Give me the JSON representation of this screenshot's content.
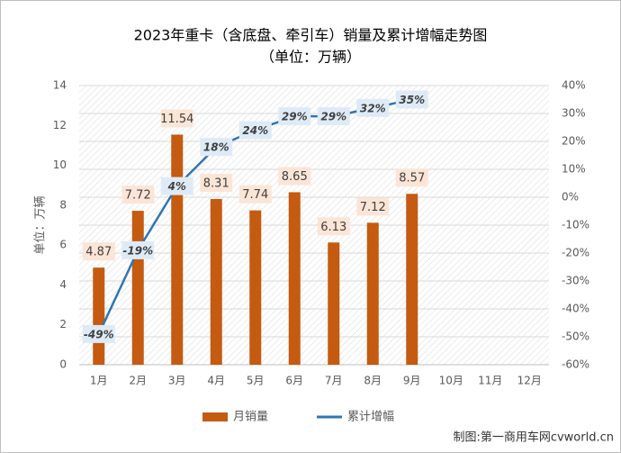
{
  "chart_data": {
    "type": "bar_line",
    "title": "2023年重卡（含底盘、牵引车）销量及累计增幅走势图",
    "subtitle": "（单位：万辆）",
    "y_label": "单位：万辆",
    "source": "制图:第一商用车网cvworld.cn",
    "categories": [
      "1月",
      "2月",
      "3月",
      "4月",
      "5月",
      "6月",
      "7月",
      "8月",
      "9月",
      "10月",
      "11月",
      "12月"
    ],
    "series": [
      {
        "name": "月销量",
        "color": "#c55a11",
        "axis": "y",
        "values": [
          4.87,
          7.72,
          11.54,
          8.31,
          7.74,
          8.65,
          6.13,
          7.12,
          8.57,
          null,
          null,
          null
        ]
      },
      {
        "name": "累计增幅",
        "color": "#2e75b6",
        "axis": "y2",
        "values": [
          -49,
          -19,
          4,
          18,
          24,
          29,
          29,
          32,
          35,
          null,
          null,
          null
        ],
        "value_labels": [
          "-49%",
          "-19%",
          "4%",
          "18%",
          "24%",
          "29%",
          "29%",
          "32%",
          "35%",
          null,
          null,
          null
        ]
      }
    ],
    "ylim": [
      0,
      14
    ],
    "yticks": [
      0,
      2,
      4,
      6,
      8,
      10,
      12,
      14
    ],
    "y2lim": [
      -60,
      40
    ],
    "y2ticks": [
      {
        "value": -60,
        "label": "-60%"
      },
      {
        "value": -50,
        "label": "-50%"
      },
      {
        "value": -40,
        "label": "-40%"
      },
      {
        "value": -30,
        "label": "-30%"
      },
      {
        "value": -20,
        "label": "-20%"
      },
      {
        "value": -10,
        "label": "-10%"
      },
      {
        "value": 0,
        "label": "0%"
      },
      {
        "value": 10,
        "label": "10%"
      },
      {
        "value": 20,
        "label": "20%"
      },
      {
        "value": 30,
        "label": "30%"
      },
      {
        "value": 40,
        "label": "40%"
      }
    ],
    "grid": true
  }
}
